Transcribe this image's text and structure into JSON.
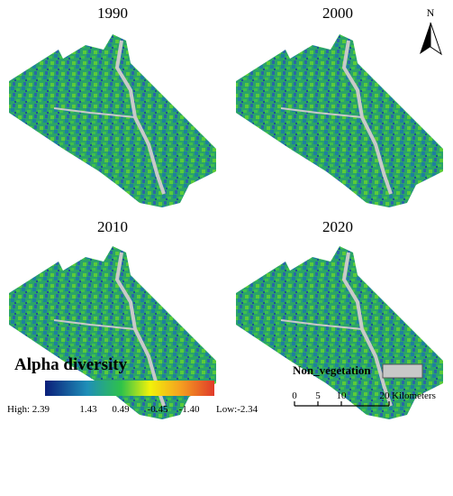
{
  "panels": [
    {
      "title": "1990"
    },
    {
      "title": "2000"
    },
    {
      "title": "2010"
    },
    {
      "title": "2020"
    }
  ],
  "north": "N",
  "legend": {
    "title": "Alpha diversity",
    "labels": [
      "High: 2.39",
      "1.43",
      "0.49",
      "-0.45",
      "-1.40",
      "Low:-2.34"
    ]
  },
  "non_vegetation": "Non_vegetation",
  "scale_bar": {
    "labels": [
      "0",
      "5",
      "10",
      "20"
    ],
    "unit": "Kilometers"
  }
}
